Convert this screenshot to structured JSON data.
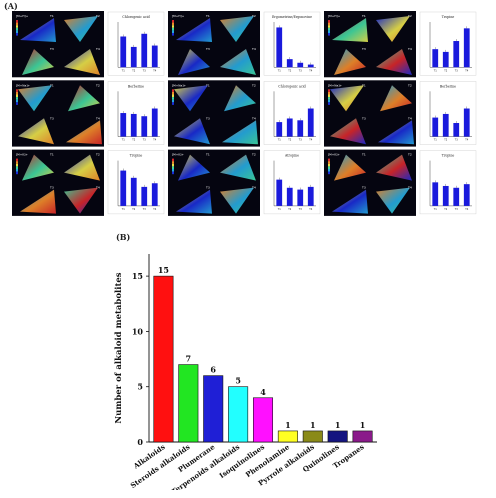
{
  "panel_labels": {
    "a": "(A)",
    "b": "(B)"
  },
  "panel_a": {
    "groups": [
      {
        "mz_labels": [
          "[M+H]+",
          "[M+Na]+",
          "[M+K]+"
        ],
        "mini_charts": [
          {
            "title": "Chlorogenic acid",
            "categories": [
              "T1",
              "T2",
              "T3",
              "T4"
            ],
            "values": [
              0.68,
              0.45,
              0.74,
              0.48
            ]
          },
          {
            "title": "Berberine",
            "categories": [
              "T1",
              "T2",
              "T3",
              "T4"
            ],
            "values": [
              0.52,
              0.5,
              0.45,
              0.62
            ]
          },
          {
            "title": "Tropine",
            "categories": [
              "T1",
              "T2",
              "T3",
              "T4"
            ],
            "values": [
              0.78,
              0.62,
              0.42,
              0.5
            ]
          }
        ]
      },
      {
        "mz_labels": [
          "[M+H]+",
          "[M+Na]+",
          "[M+K]+"
        ],
        "mini_charts": [
          {
            "title": "Ergometrine/Ergonovine",
            "categories": [
              "T1",
              "T2",
              "T3",
              "T4"
            ],
            "values": [
              0.88,
              0.18,
              0.1,
              0.06
            ]
          },
          {
            "title": "Chlorogenic acid",
            "categories": [
              "T1",
              "T2",
              "T3",
              "T4"
            ],
            "values": [
              0.32,
              0.4,
              0.36,
              0.62
            ]
          },
          {
            "title": "Atropine",
            "categories": [
              "T1",
              "T2",
              "T3",
              "T4"
            ],
            "values": [
              0.58,
              0.4,
              0.36,
              0.42
            ]
          }
        ]
      },
      {
        "mz_labels": [
          "[M+H]+",
          "[M+Na]+",
          "[M+K]+"
        ],
        "mini_charts": [
          {
            "title": "Tropine",
            "categories": [
              "T1",
              "T2",
              "T3",
              "T4"
            ],
            "values": [
              0.4,
              0.34,
              0.58,
              0.86
            ]
          },
          {
            "title": "Berberine",
            "categories": [
              "T1",
              "T2",
              "T3",
              "T4"
            ],
            "values": [
              0.42,
              0.5,
              0.3,
              0.62
            ]
          },
          {
            "title": "Tropine",
            "categories": [
              "T1",
              "T2",
              "T3",
              "T4"
            ],
            "values": [
              0.52,
              0.44,
              0.4,
              0.48
            ]
          }
        ]
      }
    ],
    "tile_tags": [
      "T1",
      "T2",
      "T3",
      "T4"
    ],
    "palette": [
      "#1a2bd6",
      "#25a8e0",
      "#3fd6a0",
      "#e8e04a",
      "#f08a2a",
      "#d8262a"
    ]
  },
  "chart_data": {
    "type": "bar",
    "categories": [
      "Alkaloids",
      "Steroids alkaloids",
      "Plumerane",
      "Terpenoids alkaloids",
      "Isoquinolines",
      "Phenolamine",
      "Pyrrole alkaloids",
      "Quinolines",
      "Tropanes"
    ],
    "values": [
      15,
      7,
      6,
      5,
      4,
      1,
      1,
      1,
      1
    ],
    "data_labels": [
      "15",
      "7",
      "6",
      "5",
      "4",
      "1",
      "1",
      "1",
      "1"
    ],
    "colors": [
      "#ff1010",
      "#22e622",
      "#1f1fd6",
      "#22ffff",
      "#ff10ff",
      "#ffff22",
      "#8a8a18",
      "#141480",
      "#8a1a8a"
    ],
    "title": "",
    "xlabel": "",
    "ylabel": "Number of alkaloid metabolites",
    "ylim": [
      0,
      17
    ],
    "yticks": [
      0,
      5,
      10,
      15
    ],
    "grid": false,
    "legend": "none"
  }
}
